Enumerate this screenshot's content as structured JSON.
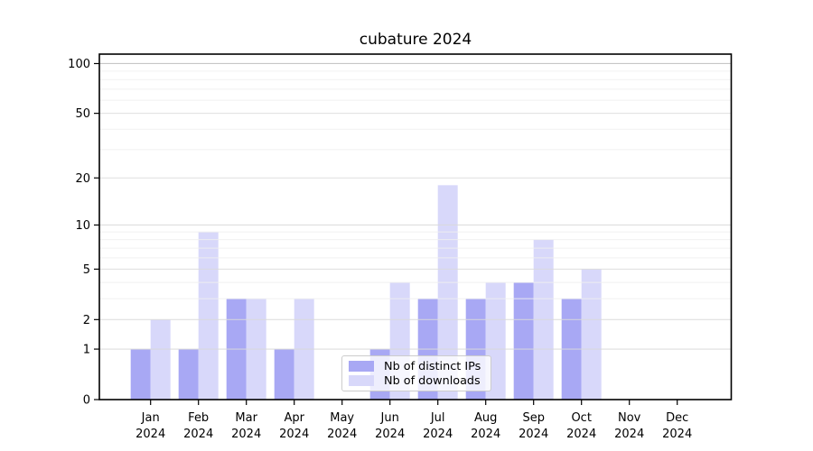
{
  "figure": {
    "title": "cubature 2024"
  },
  "chart_data": {
    "type": "bar",
    "title": "cubature 2024",
    "categories": [
      "Jan",
      "Feb",
      "Mar",
      "Apr",
      "May",
      "Jun",
      "Jul",
      "Aug",
      "Sep",
      "Oct",
      "Nov",
      "Dec"
    ],
    "category_year": "2024",
    "series": [
      {
        "name": "Nb of distinct IPs",
        "color": "#a8a8f4",
        "values": [
          1,
          1,
          3,
          1,
          0,
          1,
          3,
          3,
          4,
          3,
          0,
          0
        ]
      },
      {
        "name": "Nb of downloads",
        "color": "#d8d8fa",
        "values": [
          2,
          9,
          3,
          3,
          0,
          4,
          18,
          4,
          8,
          5,
          0,
          0
        ]
      }
    ],
    "xlabel": "",
    "ylabel": "",
    "yscale": "log1p",
    "ylim": [
      0,
      114
    ],
    "yticks_major": [
      0,
      1,
      2,
      5,
      10,
      20,
      50,
      100
    ],
    "yticks_minor": [
      3,
      4,
      6,
      7,
      8,
      9,
      30,
      40,
      60,
      70,
      80,
      90
    ],
    "grid": "horizontal",
    "legend_position": "lower-center-inside",
    "colors": {
      "spine": "#000000",
      "tick_label": "#000000",
      "grid_major": "#d9d9d9",
      "grid_minor": "#efefef",
      "grid_top": "#bdbdbd",
      "legend_border": "#cccccc"
    }
  }
}
